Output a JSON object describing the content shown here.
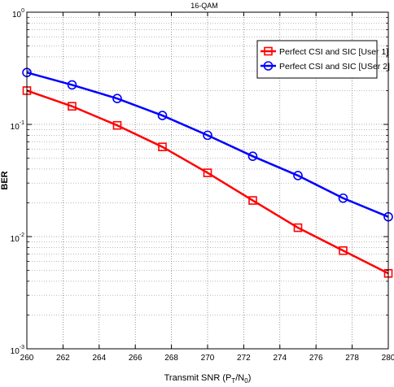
{
  "chart_data": {
    "type": "line",
    "title": "16-QAM",
    "xlabel": {
      "main": "Transmit SNR (P",
      "sub1": "T",
      "mid": "/N",
      "sub2": "0",
      "end": ")"
    },
    "ylabel": "BER",
    "y_scale": "log",
    "xlim": [
      260,
      280
    ],
    "ylim": [
      0.001,
      1
    ],
    "x_ticks": [
      "260",
      "262",
      "264",
      "266",
      "268",
      "270",
      "272",
      "274",
      "276",
      "278",
      "280"
    ],
    "y_ticks": [
      {
        "base": "10",
        "exp": "0"
      },
      {
        "base": "10",
        "exp": "-1"
      },
      {
        "base": "10",
        "exp": "-2"
      },
      {
        "base": "10",
        "exp": "-3"
      }
    ],
    "grid": true,
    "legend_position": "top-right",
    "x": [
      260,
      262.5,
      265,
      267.5,
      270,
      272.5,
      275,
      277.5,
      280
    ],
    "series": [
      {
        "name": "Perfect CSI and SIC [User 1]",
        "color": "#ff0000",
        "marker": "square",
        "values": [
          0.2,
          0.145,
          0.098,
          0.063,
          0.037,
          0.021,
          0.012,
          0.0075,
          0.0047
        ]
      },
      {
        "name": "Perfect CSI and SIC [USer 2]",
        "color": "#0000ff",
        "marker": "circle",
        "values": [
          0.29,
          0.225,
          0.17,
          0.12,
          0.08,
          0.052,
          0.035,
          0.022,
          0.015
        ]
      }
    ]
  }
}
